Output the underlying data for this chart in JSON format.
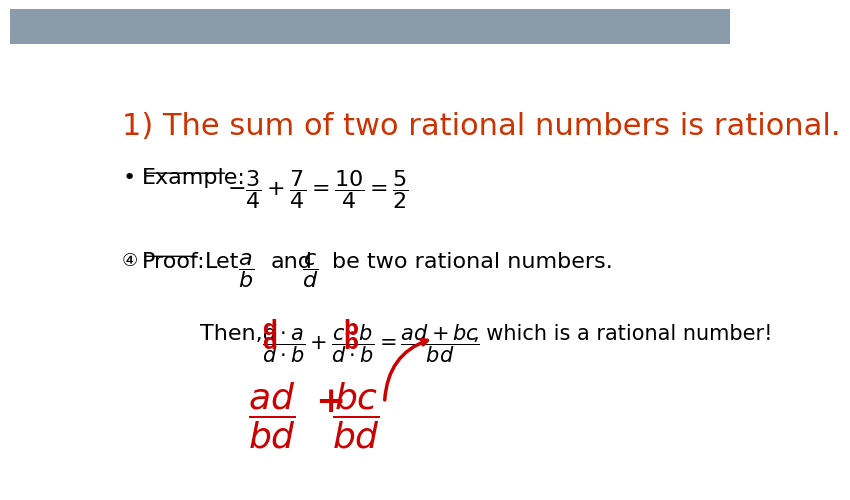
{
  "background_color": "#ffffff",
  "header_color": "#8a9baa",
  "title_text": "1) The sum of two rational numbers is rational.",
  "title_color": "#cc3300",
  "title_fontsize": 22,
  "red_color": "#cc0000"
}
